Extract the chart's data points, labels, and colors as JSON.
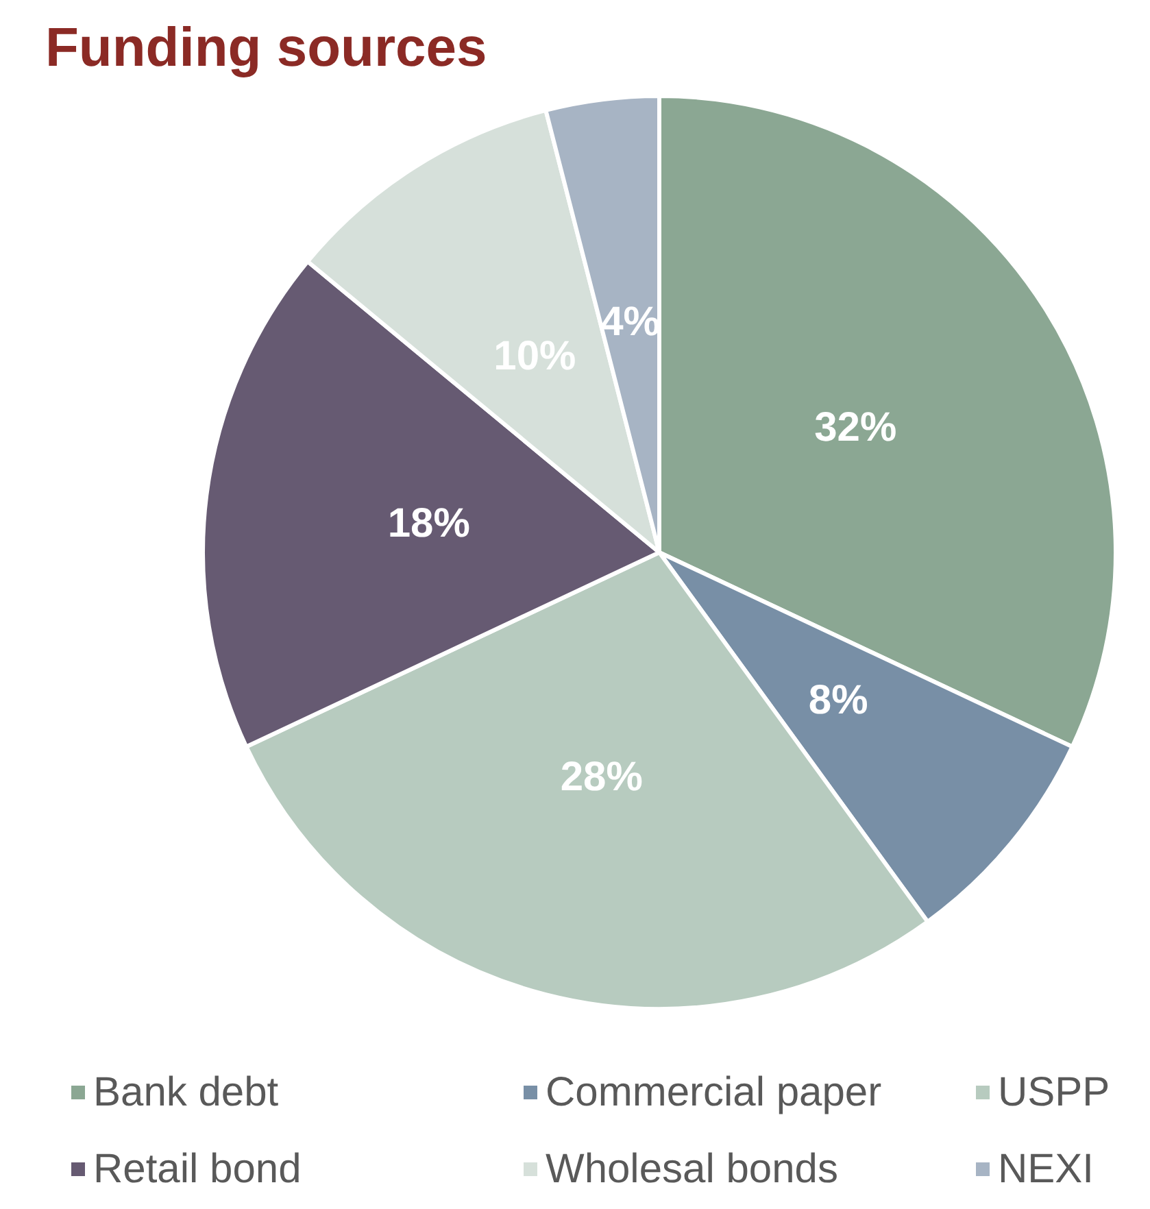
{
  "chart_data": {
    "type": "pie",
    "title": "Funding sources",
    "categories": [
      "Bank debt",
      "Commercial paper",
      "USPP",
      "Retail bond",
      "Wholesal bonds",
      "NEXI"
    ],
    "values": [
      32,
      8,
      28,
      18,
      10,
      4
    ],
    "value_labels": [
      "32%",
      "8%",
      "28%",
      "18%",
      "10%",
      "4%"
    ],
    "colors": [
      "#8ba793",
      "#788fa6",
      "#b7cbbf",
      "#665a72",
      "#d6e0da",
      "#a7b4c4"
    ],
    "legend": "bottom"
  }
}
